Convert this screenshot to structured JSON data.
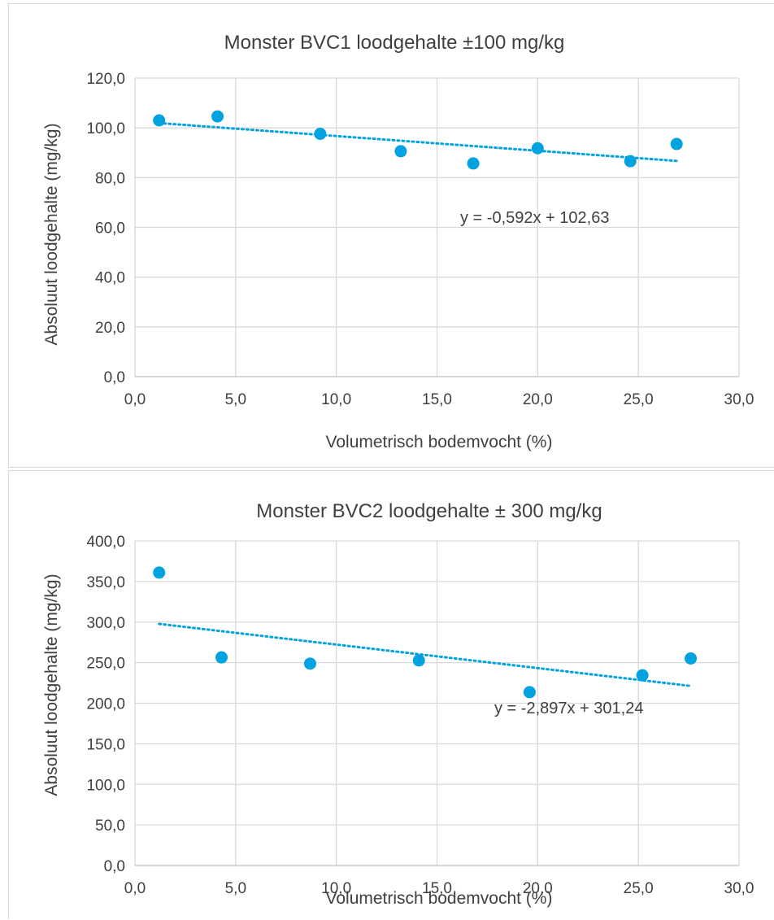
{
  "chart_data": [
    {
      "type": "scatter",
      "title": "Monster BVC1 loodgehalte ±100 mg/kg",
      "xlabel": "Volumetrisch bodemvocht (%)",
      "ylabel": "Absoluut loodgehalte (mg/kg)",
      "xlim": [
        0,
        30
      ],
      "ylim": [
        0,
        120
      ],
      "xticks": [
        "0,0",
        "5,0",
        "10,0",
        "15,0",
        "20,0",
        "25,0",
        "30,0"
      ],
      "yticks": [
        "0,0",
        "20,0",
        "40,0",
        "60,0",
        "80,0",
        "100,0",
        "120,0"
      ],
      "grid": true,
      "series": [
        {
          "color": "#00a2e0",
          "x": [
            1.2,
            4.1,
            9.2,
            13.2,
            16.8,
            20.0,
            24.6,
            26.9
          ],
          "y": [
            103.0,
            104.6,
            97.6,
            90.6,
            85.7,
            91.8,
            86.6,
            93.5
          ]
        }
      ],
      "trendline": {
        "slope": -0.592,
        "intercept": 102.63,
        "x_range": [
          1.2,
          26.9
        ]
      },
      "equation": "y = -0,592x + 102,63"
    },
    {
      "type": "scatter",
      "title": "Monster BVC2 loodgehalte ± 300 mg/kg",
      "xlabel": "Volumetrisch bodemvocht (%)",
      "ylabel": "Absoluut loodgehalte (mg/kg)",
      "xlim": [
        0,
        30
      ],
      "ylim": [
        0,
        400
      ],
      "xticks": [
        "0,0",
        "5,0",
        "10,0",
        "15,0",
        "20,0",
        "25,0",
        "30,0"
      ],
      "yticks": [
        "0,0",
        "50,0",
        "100,0",
        "150,0",
        "200,0",
        "250,0",
        "300,0",
        "350,0",
        "400,0"
      ],
      "grid": true,
      "series": [
        {
          "color": "#00a2e0",
          "x": [
            1.2,
            4.3,
            8.7,
            14.1,
            19.6,
            25.2,
            27.6
          ],
          "y": [
            361.0,
            256.5,
            248.8,
            252.7,
            213.6,
            234.4,
            255.2
          ]
        }
      ],
      "trendline": {
        "slope": -2.897,
        "intercept": 301.24,
        "x_range": [
          1.2,
          27.6
        ]
      },
      "equation": "y = -2,897x + 301,24"
    }
  ]
}
